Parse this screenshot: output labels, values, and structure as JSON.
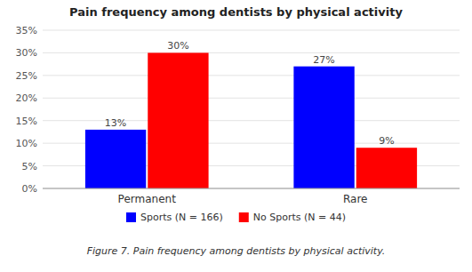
{
  "chart_data": {
    "type": "bar",
    "title": "Pain frequency among dentists by physical activity",
    "caption": "Figure 7. Pain frequency among dentists by physical activity.",
    "categories": [
      "Permanent",
      "Rare"
    ],
    "series": [
      {
        "name": "Sports (N = 166)",
        "color": "#0000FF",
        "values": [
          13,
          27
        ],
        "value_labels": [
          "13%",
          "27%"
        ]
      },
      {
        "name": "No Sports (N = 44)",
        "color": "#FF0000",
        "values": [
          30,
          9
        ],
        "value_labels": [
          "30%",
          "9%"
        ]
      }
    ],
    "ylim": [
      0,
      35
    ],
    "yticks": [
      {
        "value": 0,
        "label": "0%"
      },
      {
        "value": 5,
        "label": "5%"
      },
      {
        "value": 10,
        "label": "10%"
      },
      {
        "value": 15,
        "label": "15%"
      },
      {
        "value": 20,
        "label": "20%"
      },
      {
        "value": 25,
        "label": "25%"
      },
      {
        "value": 30,
        "label": "30%"
      },
      {
        "value": 35,
        "label": "35%"
      }
    ],
    "grid": true,
    "legend": "bottom",
    "data_labels": true
  }
}
